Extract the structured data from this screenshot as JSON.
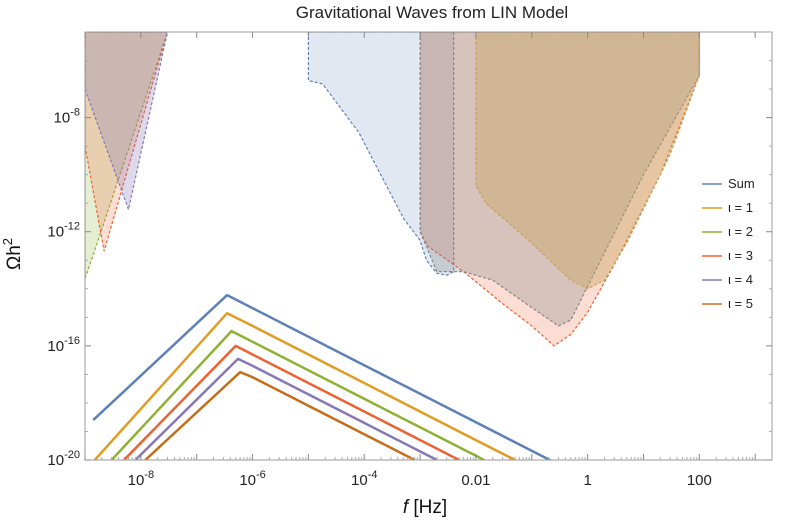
{
  "chart_data": {
    "type": "line",
    "title": "Gravitational Waves from LIN Model",
    "xlabel": "f [Hz]",
    "xlabel_parts": {
      "symbol": "f",
      "unit": "[Hz]"
    },
    "ylabel": "Ωh²",
    "ylabel_parts": {
      "base": "Ωh",
      "sup": "2"
    },
    "x_scale": "log",
    "y_scale": "log",
    "xlim": [
      1e-09,
      2000
    ],
    "ylim": [
      1e-20,
      1e-05
    ],
    "x_ticks": [
      {
        "value": 1e-08,
        "label": "10",
        "sup": "-8"
      },
      {
        "value": 1e-06,
        "label": "10",
        "sup": "-6"
      },
      {
        "value": 0.0001,
        "label": "10",
        "sup": "-4"
      },
      {
        "value": 0.01,
        "label": "0.01",
        "sup": ""
      },
      {
        "value": 1,
        "label": "1",
        "sup": ""
      },
      {
        "value": 100,
        "label": "100",
        "sup": ""
      }
    ],
    "y_ticks": [
      {
        "value": 1e-08,
        "label": "10",
        "sup": "-8"
      },
      {
        "value": 1e-12,
        "label": "10",
        "sup": "-12"
      },
      {
        "value": 1e-16,
        "label": "10",
        "sup": "-16"
      },
      {
        "value": 1e-20,
        "label": "10",
        "sup": "-20"
      }
    ],
    "legend_position": "right",
    "series": [
      {
        "name": "Sum",
        "color": "#5E81B5",
        "points": [
          [
            1.4e-09,
            2.5e-19
          ],
          [
            3.5e-07,
            6e-15
          ],
          [
            1e-06,
            2.1e-15
          ],
          [
            0.0001,
            2.1e-17
          ],
          [
            0.01,
            2.1e-19
          ],
          [
            0.3,
            7e-21
          ]
        ]
      },
      {
        "name": "ι = 1",
        "color": "#E19C24",
        "points": [
          [
            1.5e-09,
            1e-20
          ],
          [
            3.5e-07,
            1.4e-15
          ],
          [
            1e-06,
            5e-16
          ],
          [
            0.0001,
            5e-18
          ],
          [
            0.01,
            5e-20
          ],
          [
            0.05,
            1e-20
          ]
        ]
      },
      {
        "name": "ι = 2",
        "color": "#8FB032",
        "points": [
          [
            3e-09,
            1e-20
          ],
          [
            4.2e-07,
            3.3e-16
          ],
          [
            1e-06,
            1.4e-16
          ],
          [
            0.0001,
            1.4e-18
          ],
          [
            0.01,
            1.4e-20
          ],
          [
            0.014,
            1e-20
          ]
        ]
      },
      {
        "name": "ι = 3",
        "color": "#EB6235",
        "points": [
          [
            5e-09,
            1e-20
          ],
          [
            5e-07,
            1e-16
          ],
          [
            1e-06,
            5e-17
          ],
          [
            0.0001,
            5e-19
          ],
          [
            0.005,
            1e-20
          ]
        ]
      },
      {
        "name": "ι = 4",
        "color": "#8778B3",
        "points": [
          [
            8e-09,
            1e-20
          ],
          [
            5.5e-07,
            3.5e-17
          ],
          [
            1e-06,
            2e-17
          ],
          [
            0.0001,
            2e-19
          ],
          [
            0.002,
            1e-20
          ]
        ]
      },
      {
        "name": "ι = 5",
        "color": "#C56E1A",
        "points": [
          [
            1.2e-08,
            1e-20
          ],
          [
            6e-07,
            1.2e-17
          ],
          [
            1e-06,
            8e-18
          ],
          [
            0.0001,
            8e-20
          ],
          [
            0.0008,
            1e-20
          ]
        ]
      }
    ],
    "sensitivity_regions": [
      {
        "color": "#8FB032",
        "opacity": 0.22,
        "points": [
          [
            1e-09,
            2.3e-14
          ],
          [
            1.3e-09,
            1e-13
          ],
          [
            3e-08,
            1e-05
          ],
          [
            1e-09,
            1e-05
          ]
        ]
      },
      {
        "color": "#EB6235",
        "opacity": 0.22,
        "points": [
          [
            1e-09,
            1e-09
          ],
          [
            2.2e-09,
            2.1e-13
          ],
          [
            3e-08,
            1e-05
          ],
          [
            1e-09,
            1e-05
          ]
        ]
      },
      {
        "color": "#8778B3",
        "opacity": 0.28,
        "points": [
          [
            1e-09,
            1e-07
          ],
          [
            6e-09,
            6e-12
          ],
          [
            3e-08,
            1e-05
          ],
          [
            1e-09,
            1e-05
          ]
        ]
      },
      {
        "color": "#5E81B5",
        "opacity": 0.18,
        "points": [
          [
            1e-05,
            1e-05
          ],
          [
            1e-05,
            2e-07
          ],
          [
            1.8e-05,
            1.5e-07
          ],
          [
            8e-05,
            3e-09
          ],
          [
            0.0005,
            3e-12
          ],
          [
            0.001,
            5e-13
          ],
          [
            0.0013,
            1e-13
          ],
          [
            0.002,
            3.5e-14
          ],
          [
            0.003,
            3e-14
          ],
          [
            0.004,
            4e-14
          ],
          [
            0.004,
            1e-05
          ]
        ]
      },
      {
        "color": "#EB6235",
        "opacity": 0.22,
        "points": [
          [
            0.001,
            1e-05
          ],
          [
            0.001,
            1e-12
          ],
          [
            0.0014,
            3e-13
          ],
          [
            0.006,
            4e-14
          ],
          [
            0.03,
            3e-15
          ],
          [
            0.1,
            5e-16
          ],
          [
            0.25,
            1e-16
          ],
          [
            0.5,
            2.5e-16
          ],
          [
            1,
            1.5e-15
          ],
          [
            3,
            7e-14
          ],
          [
            20,
            1e-10
          ],
          [
            100,
            3e-07
          ],
          [
            100,
            1e-05
          ]
        ]
      },
      {
        "color": "#888888",
        "opacity": 0.3,
        "points": [
          [
            0.001,
            1e-05
          ],
          [
            0.001,
            1e-12
          ],
          [
            0.002,
            4e-14
          ],
          [
            0.006,
            4e-14
          ],
          [
            0.02,
            2e-14
          ],
          [
            0.1,
            2.2e-15
          ],
          [
            0.3,
            5e-16
          ],
          [
            0.5,
            8e-16
          ],
          [
            1,
            1.2e-14
          ],
          [
            10,
            1e-10
          ],
          [
            100,
            3e-07
          ],
          [
            100,
            1e-05
          ]
        ]
      },
      {
        "color": "#C8A25A",
        "opacity": 0.4,
        "points": [
          [
            0.01,
            1e-05
          ],
          [
            0.01,
            4e-11
          ],
          [
            0.015,
            1e-11
          ],
          [
            0.1,
            4e-13
          ],
          [
            0.5,
            2e-14
          ],
          [
            1,
            1e-14
          ],
          [
            2,
            2e-14
          ],
          [
            5,
            4e-13
          ],
          [
            30,
            5e-10
          ],
          [
            100,
            3e-07
          ],
          [
            100,
            1e-05
          ]
        ]
      }
    ]
  }
}
